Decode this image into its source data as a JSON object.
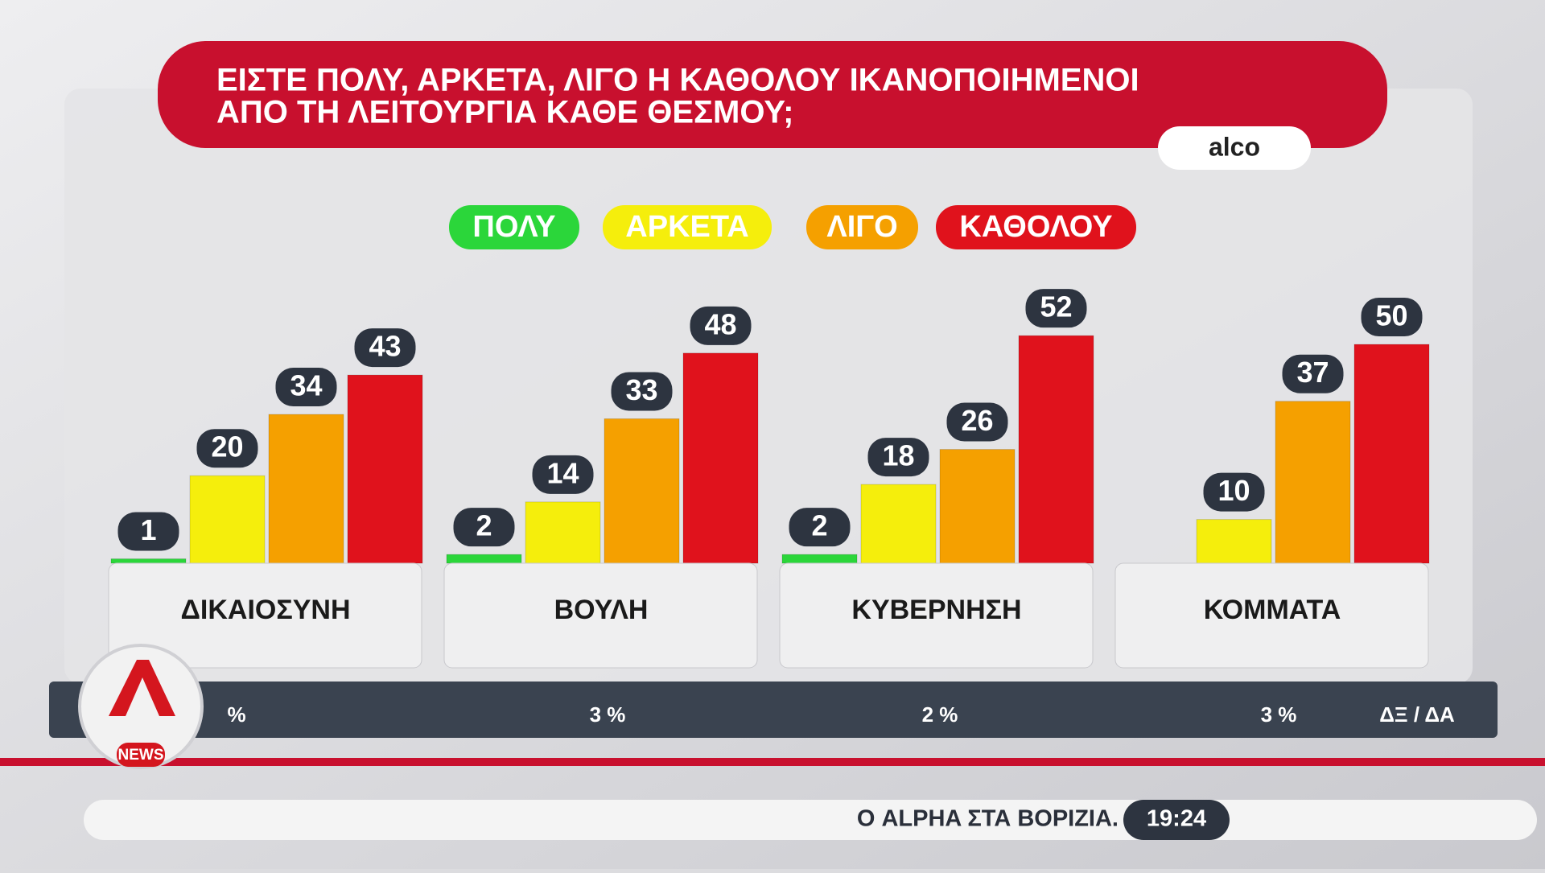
{
  "chart_data": {
    "type": "bar",
    "title_lines": [
      "ΕΙΣΤΕ ΠΟΛΥ, ΑΡΚΕΤΑ, ΛΙΓΟ Η ΚΑΘΟΛΟΥ ΙΚΑΝΟΠΟΙΗΜΕΝΟΙ",
      "ΑΠΟ ΤΗ ΛΕΙΤΟΥΡΓΙΑ ΚΑΘΕ ΘΕΣΜΟΥ;"
    ],
    "source": "alco",
    "categories": [
      "ΔΙΚΑΙΟΣΥΝΗ",
      "ΒΟΥΛΗ",
      "ΚΥΒΕΡΝΗΣΗ",
      "ΚΟΜΜΑΤΑ"
    ],
    "series": [
      {
        "name": "ΠΟΛΥ",
        "color": "#2bd63a",
        "values": [
          1,
          2,
          2,
          null
        ]
      },
      {
        "name": "ΑΡΚΕΤΑ",
        "color": "#f5ee0c",
        "values": [
          20,
          14,
          18,
          10
        ]
      },
      {
        "name": "ΛΙΓΟ",
        "color": "#f5a000",
        "values": [
          34,
          33,
          26,
          37
        ]
      },
      {
        "name": "ΚΑΘΟΛΟΥ",
        "color": "#e0121c",
        "values": [
          43,
          48,
          52,
          50
        ]
      }
    ],
    "dkna": {
      "label": "ΔΞ / ΔΑ",
      "values": [
        null,
        3,
        2,
        3
      ],
      "value_labels": [
        "%",
        "3 %",
        "2 %",
        "3 %"
      ]
    }
  },
  "ticker": {
    "text": "Ο ALPHA ΣΤΑ ΒΟΡΙΖΙΑ.",
    "time": "19:24"
  },
  "logo": {
    "text": "NEWS"
  }
}
